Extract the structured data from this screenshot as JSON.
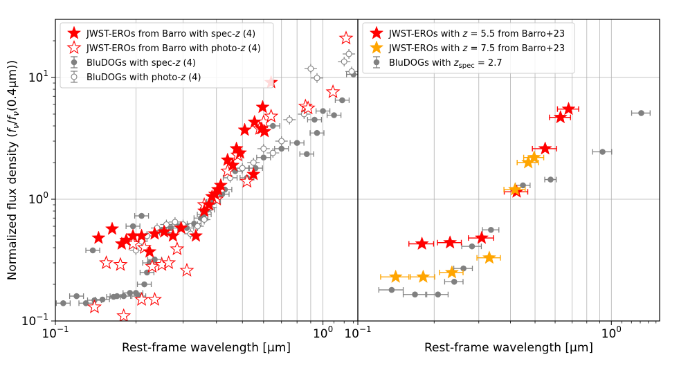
{
  "figure": {
    "ylabel": "Normalized flux density (fν/fν(0.4μm))",
    "ylabel_parts": {
      "pre": "Normalized flux density (",
      "f1": "f",
      "s1": "ν",
      "slash": "/",
      "f2": "f",
      "s2": "ν",
      "post": "(0.4μm))"
    }
  },
  "chart_data": [
    {
      "type": "scatter",
      "panel": "left",
      "xlabel": "Rest-frame wavelength [μm]",
      "ylabel": "Normalized flux density (fν/fν(0.4μm))",
      "xscale": "log",
      "yscale": "log",
      "xlim": [
        0.1,
        1.35
      ],
      "ylim": [
        0.1,
        30
      ],
      "xticks": [
        {
          "value": 0.1,
          "base": "10",
          "exp": "−1"
        },
        {
          "value": 1,
          "base": "10",
          "exp": "0"
        }
      ],
      "yticks": [
        {
          "value": 0.1,
          "base": "10",
          "exp": "−1"
        },
        {
          "value": 1,
          "base": "10",
          "exp": "0"
        },
        {
          "value": 10,
          "base": "10",
          "exp": "1"
        }
      ],
      "grid": true,
      "legend_position": "upper-left",
      "legend": [
        {
          "label": "JWST-EROs from Barro with spec-z (4)",
          "text_pre": "JWST-EROs from Barro with spec-",
          "text_it": "z",
          "text_post": " (4)",
          "marker": "star-filled",
          "color": "#ff0000"
        },
        {
          "label": "JWST-EROs from Barro with photo-z (4)",
          "text_pre": "JWST-EROs from Barro with photo-",
          "text_it": "z",
          "text_post": " (4)",
          "marker": "star-open",
          "color": "#ff0000"
        },
        {
          "label": "BluDOGs with spec-z (4)",
          "text_pre": "BluDOGs with spec-",
          "text_it": "z",
          "text_post": " (4)",
          "marker": "circle-filled-err",
          "color": "#808080"
        },
        {
          "label": "BluDOGs with photo-z (4)",
          "text_pre": "BluDOGs with photo-",
          "text_it": "z",
          "text_post": " (4)",
          "marker": "circle-open-err",
          "color": "#808080"
        }
      ],
      "series": [
        {
          "name": "JWST-EROs from Barro with spec-z (4)",
          "marker": "star-filled",
          "color": "#ff0000",
          "points": [
            [
              0.145,
              0.48
            ],
            [
              0.163,
              0.57
            ],
            [
              0.177,
              0.43
            ],
            [
              0.184,
              0.46
            ],
            [
              0.195,
              0.5
            ],
            [
              0.21,
              0.5
            ],
            [
              0.225,
              0.37
            ],
            [
              0.235,
              0.52
            ],
            [
              0.255,
              0.54
            ],
            [
              0.275,
              0.5
            ],
            [
              0.295,
              0.58
            ],
            [
              0.335,
              0.5
            ],
            [
              0.36,
              0.8
            ],
            [
              0.375,
              0.9
            ],
            [
              0.385,
              1.05
            ],
            [
              0.395,
              1.1
            ],
            [
              0.405,
              1.2
            ],
            [
              0.415,
              1.3
            ],
            [
              0.44,
              2.1
            ],
            [
              0.46,
              1.9
            ],
            [
              0.475,
              2.6
            ],
            [
              0.49,
              2.4
            ],
            [
              0.51,
              3.7
            ],
            [
              0.55,
              1.6
            ],
            [
              0.555,
              4.3
            ],
            [
              0.59,
              3.8
            ],
            [
              0.595,
              5.7
            ],
            [
              0.605,
              3.6
            ],
            [
              0.64,
              9.1
            ]
          ]
        },
        {
          "name": "JWST-EROs from Barro with photo-z (4)",
          "marker": "star-open",
          "color": "#ff0000",
          "points": [
            [
              0.14,
              0.13
            ],
            [
              0.155,
              0.3
            ],
            [
              0.175,
              0.29
            ],
            [
              0.18,
              0.11
            ],
            [
              0.195,
              0.43
            ],
            [
              0.21,
              0.15
            ],
            [
              0.215,
              0.4
            ],
            [
              0.23,
              0.28
            ],
            [
              0.235,
              0.15
            ],
            [
              0.25,
              0.29
            ],
            [
              0.265,
              0.3
            ],
            [
              0.285,
              0.39
            ],
            [
              0.31,
              0.26
            ],
            [
              0.36,
              0.9
            ],
            [
              0.4,
              1.0
            ],
            [
              0.44,
              1.7
            ],
            [
              0.48,
              2.3
            ],
            [
              0.52,
              1.4
            ],
            [
              0.58,
              3.8
            ],
            [
              0.6,
              4.3
            ],
            [
              0.64,
              4.8
            ],
            [
              0.86,
              5.8
            ],
            [
              0.88,
              5.6
            ],
            [
              1.09,
              7.6
            ],
            [
              1.22,
              21.0
            ]
          ]
        },
        {
          "name": "BluDOGs with spec-z (4)",
          "marker": "circle-filled-err",
          "color": "#808080",
          "points": [
            [
              0.107,
              0.14
            ],
            [
              0.12,
              0.16
            ],
            [
              0.13,
              0.14
            ],
            [
              0.138,
              0.38
            ],
            [
              0.14,
              0.148
            ],
            [
              0.15,
              0.15
            ],
            [
              0.165,
              0.158
            ],
            [
              0.17,
              0.16
            ],
            [
              0.18,
              0.16
            ],
            [
              0.19,
              0.17
            ],
            [
              0.195,
              0.6
            ],
            [
              0.2,
              0.17
            ],
            [
              0.205,
              0.16
            ],
            [
              0.21,
              0.73
            ],
            [
              0.215,
              0.2
            ],
            [
              0.22,
              0.25
            ],
            [
              0.225,
              0.3
            ],
            [
              0.235,
              0.32
            ],
            [
              0.25,
              0.56
            ],
            [
              0.26,
              0.53
            ],
            [
              0.27,
              0.58
            ],
            [
              0.29,
              0.6
            ],
            [
              0.31,
              0.58
            ],
            [
              0.33,
              0.63
            ],
            [
              0.35,
              0.7
            ],
            [
              0.36,
              0.75
            ],
            [
              0.37,
              0.82
            ],
            [
              0.39,
              0.95
            ],
            [
              0.42,
              1.1
            ],
            [
              0.43,
              1.2
            ],
            [
              0.45,
              1.5
            ],
            [
              0.47,
              1.7
            ],
            [
              0.5,
              1.8
            ],
            [
              0.52,
              1.5
            ],
            [
              0.56,
              1.8
            ],
            [
              0.6,
              2.2
            ],
            [
              0.65,
              4.0
            ],
            [
              0.7,
              2.6
            ],
            [
              0.8,
              2.9
            ],
            [
              0.87,
              2.35
            ],
            [
              0.93,
              4.5
            ],
            [
              0.95,
              3.5
            ],
            [
              1.0,
              5.3
            ],
            [
              1.1,
              4.9
            ],
            [
              1.18,
              6.5
            ],
            [
              1.3,
              10.6
            ]
          ]
        },
        {
          "name": "BluDOGs with photo-z (4)",
          "marker": "circle-open-err",
          "color": "#808080",
          "points": [
            [
              0.2,
              0.38
            ],
            [
              0.21,
              0.45
            ],
            [
              0.22,
              0.5
            ],
            [
              0.24,
              0.58
            ],
            [
              0.26,
              0.62
            ],
            [
              0.28,
              0.65
            ],
            [
              0.3,
              0.62
            ],
            [
              0.32,
              0.52
            ],
            [
              0.34,
              0.6
            ],
            [
              0.36,
              0.68
            ],
            [
              0.38,
              0.85
            ],
            [
              0.4,
              1.05
            ],
            [
              0.42,
              1.2
            ],
            [
              0.45,
              1.5
            ],
            [
              0.5,
              1.8
            ],
            [
              0.55,
              2.0
            ],
            [
              0.6,
              2.6
            ],
            [
              0.65,
              2.4
            ],
            [
              0.7,
              3.0
            ],
            [
              0.75,
              4.5
            ],
            [
              0.85,
              5.0
            ],
            [
              0.9,
              11.8
            ],
            [
              0.95,
              9.9
            ],
            [
              1.2,
              13.5
            ],
            [
              1.25,
              15.6
            ],
            [
              1.28,
              11.2
            ]
          ]
        }
      ]
    },
    {
      "type": "scatter",
      "panel": "right",
      "xlabel": "Rest-frame wavelength [μm]",
      "xscale": "log",
      "yscale": "log",
      "xlim": [
        0.1,
        1.55
      ],
      "ylim": [
        0.1,
        30
      ],
      "xticks": [
        {
          "value": 0.1,
          "base": "10",
          "exp": "−1"
        },
        {
          "value": 1,
          "base": "10",
          "exp": "0"
        }
      ],
      "grid": true,
      "legend_position": "upper-left",
      "legend": [
        {
          "label": "JWST-EROs with z = 5.5 from Barro+23",
          "text_pre": "JWST-EROs with ",
          "text_it": "z",
          "text_post": " = 5.5 from Barro+23",
          "marker": "star-filled",
          "color": "#ff0000"
        },
        {
          "label": "JWST-EROs with z = 7.5 from Barro+23",
          "text_pre": "JWST-EROs with ",
          "text_it": "z",
          "text_post": " = 7.5 from Barro+23",
          "marker": "star-filled",
          "color": "#ffa500"
        },
        {
          "label": "BluDOGs with z_spec = 2.7",
          "text_pre": "BluDOGs with ",
          "text_it": "z",
          "text_sub": "spec",
          "text_post": " = 2.7",
          "marker": "circle-filled-err",
          "color": "#808080"
        }
      ],
      "series": [
        {
          "name": "JWST-EROs with z = 5.5 from Barro+23",
          "marker": "star-filled",
          "color": "#ff0000",
          "points": [
            [
              0.179,
              0.43,
              0.02
            ],
            [
              0.231,
              0.44,
              0.025
            ],
            [
              0.308,
              0.48,
              0.035
            ],
            [
              0.423,
              1.15,
              0.045
            ],
            [
              0.548,
              2.6,
              0.06
            ],
            [
              0.63,
              4.7,
              0.06
            ],
            [
              0.678,
              5.5,
              0.065
            ]
          ]
        },
        {
          "name": "JWST-EROs with z = 7.5 from Barro+23",
          "marker": "star-filled",
          "color": "#ffa500",
          "points": [
            [
              0.141,
              0.23,
              0.018
            ],
            [
              0.181,
              0.23,
              0.02
            ],
            [
              0.235,
              0.25,
              0.025
            ],
            [
              0.33,
              0.33,
              0.035
            ],
            [
              0.417,
              1.2,
              0.04
            ],
            [
              0.47,
              2.0,
              0.045
            ],
            [
              0.496,
              2.2,
              0.045
            ]
          ]
        },
        {
          "name": "BluDOGs with z_spec = 2.7",
          "marker": "circle-filled-err",
          "color": "#808080",
          "points": [
            [
              0.136,
              0.18,
              0.015
            ],
            [
              0.168,
              0.165,
              0.017
            ],
            [
              0.207,
              0.165,
              0.02
            ],
            [
              0.24,
              0.21,
              0.02
            ],
            [
              0.261,
              0.27,
              0.022
            ],
            [
              0.282,
              0.41,
              0.025
            ],
            [
              0.335,
              0.56,
              0.025
            ],
            [
              0.448,
              1.3,
              0.03
            ],
            [
              0.576,
              1.45,
              0.03
            ],
            [
              0.923,
              2.45,
              0.08
            ],
            [
              1.312,
              5.1,
              0.11
            ]
          ]
        }
      ]
    }
  ]
}
